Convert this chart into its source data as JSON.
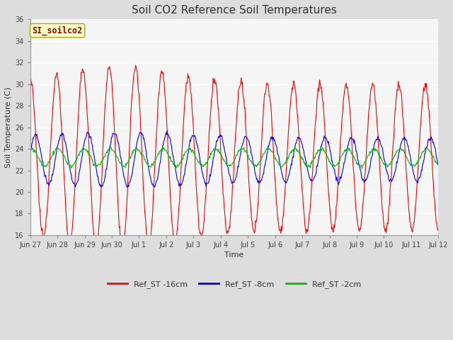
{
  "title": "Soil CO2 Reference Soil Temperatures",
  "xlabel": "Time",
  "ylabel": "Soil Temperature (C)",
  "ylim": [
    16,
    36
  ],
  "yticks": [
    16,
    18,
    20,
    22,
    24,
    26,
    28,
    30,
    32,
    34,
    36
  ],
  "bg_color": "#dddddd",
  "inner_bg_color": "#f5f5f5",
  "legend_label_16cm": "Ref_ST -16cm",
  "legend_label_8cm": "Ref_ST -8cm",
  "legend_label_2cm": "Ref_ST -2cm",
  "color_16cm": "#ff0000",
  "color_8cm": "#0000ff",
  "color_2cm": "#00bb00",
  "watermark": "SI_soilco2",
  "xtick_labels": [
    "Jun 27",
    "Jun 28",
    "Jun 29",
    "Jun 30",
    "Jul 1",
    "Jul 2",
    "Jul 3",
    "Jul 4",
    "Jul 5",
    "Jul 6",
    "Jul 7",
    "Jul 8",
    "Jul 9",
    "Jul 10",
    "Jul 11",
    "Jul 12"
  ],
  "n_days": 15.5,
  "title_fontsize": 11,
  "axis_label_fontsize": 8,
  "tick_fontsize": 7,
  "legend_fontsize": 8
}
